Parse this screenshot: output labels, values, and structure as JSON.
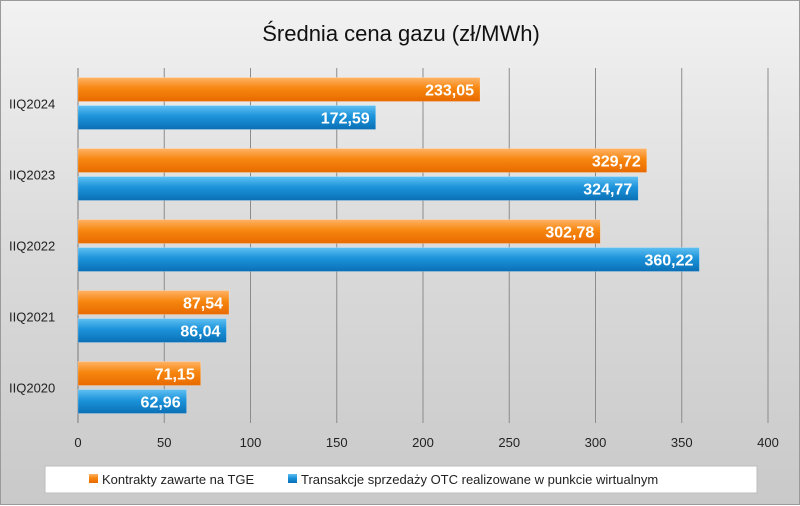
{
  "chart_data": {
    "type": "bar",
    "orientation": "horizontal",
    "title": "Średnia cena gazu (zł/MWh)",
    "categories": [
      "IIQ2024",
      "IIQ2023",
      "IIQ2022",
      "IIQ2021",
      "IIQ2020"
    ],
    "series": [
      {
        "name": "Kontrakty zawarte na TGE",
        "values": [
          233.05,
          329.72,
          302.78,
          87.54,
          71.15
        ],
        "labels": [
          "233,05",
          "329,72",
          "302,78",
          "87,54",
          "71,15"
        ],
        "color": "#f57a0f"
      },
      {
        "name": "Transakcje sprzedaży OTC realizowane w punkcie wirtualnym",
        "values": [
          172.59,
          324.77,
          360.22,
          86.04,
          62.96
        ],
        "labels": [
          "172,59",
          "324,77",
          "360,22",
          "86,04",
          "62,96"
        ],
        "color": "#1a8fd6"
      }
    ],
    "xlim": [
      0,
      400
    ],
    "xticks": [
      0,
      50,
      100,
      150,
      200,
      250,
      300,
      350,
      400
    ],
    "grid": true,
    "legend_position": "bottom"
  }
}
